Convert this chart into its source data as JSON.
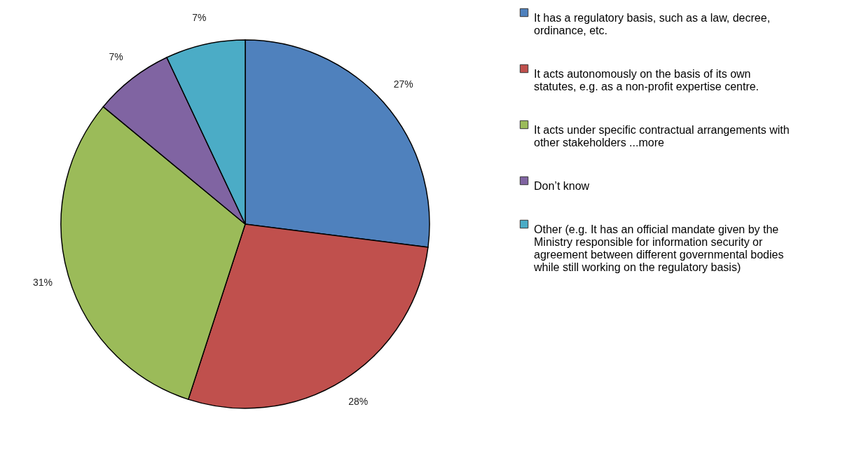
{
  "chart_data": {
    "type": "pie",
    "categories": [
      "It has a regulatory basis, such as a law, decree, ordinance, etc.",
      "It acts autonomously on the basis of its own statutes, e.g. as a non-profit expertise centre.",
      "It acts under specific contractual arrangements with other stakeholders ...more",
      "Don’t know",
      "Other (e.g. It has an official mandate given by the Ministry responsible for information security or agreement between different governmental bodies while still working on the regulatory basis)"
    ],
    "values": [
      27,
      28,
      31,
      7,
      7
    ],
    "colors": [
      "#4f81bd",
      "#c0504d",
      "#9bbb59",
      "#8064a2",
      "#4bacc6"
    ],
    "value_labels": [
      "27%",
      "28%",
      "31%",
      "7%",
      "7%"
    ],
    "legend": "right"
  }
}
